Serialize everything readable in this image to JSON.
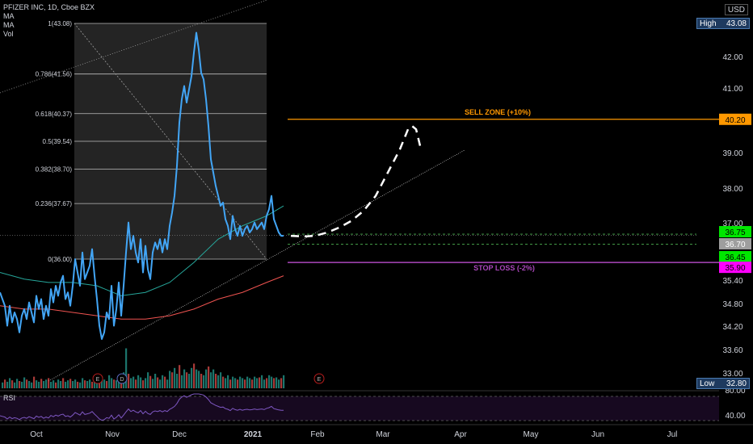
{
  "legend": {
    "title": "PFIZER INC, 1D, Cboe BZX",
    "ind1": "MA",
    "ind2": "MA",
    "ind3": "Vol"
  },
  "rsi_label": "RSI",
  "currency": "USD",
  "high_badge": {
    "label": "High",
    "value": "43.08"
  },
  "low_badge": {
    "label": "Low",
    "value": "32.80"
  },
  "colors": {
    "price": "#42a5f5",
    "ma_teal": "#26a69a",
    "ma_red": "#ef5350",
    "sell": "#ff9800",
    "stop": "#ab47bc",
    "green_badge": "#00e600",
    "magenta_badge": "#ff00ff",
    "rsi": "#7e57c2"
  },
  "chart_data": {
    "type": "line",
    "y_ticks": [
      "42.00",
      "41.00",
      "40.00",
      "39.00",
      "38.00",
      "37.00",
      "35.40",
      "34.80",
      "34.20",
      "33.60",
      "33.00"
    ],
    "y_range": [
      32.8,
      43.08
    ],
    "x_labels": [
      "Oct",
      "Nov",
      "Dec",
      "2021",
      "Feb",
      "Mar",
      "Apr",
      "May",
      "Jun",
      "Jul"
    ],
    "fib_levels": [
      {
        "label": "1(43.08)",
        "value": 43.08
      },
      {
        "label": "0.786(41.56)",
        "value": 41.56
      },
      {
        "label": "0.618(40.37)",
        "value": 40.37
      },
      {
        "label": "0.5(39.54)",
        "value": 39.54
      },
      {
        "label": "0.382(38.70)",
        "value": 38.7
      },
      {
        "label": "0.236(37.67)",
        "value": 37.67
      },
      {
        "label": "0(36.00)",
        "value": 36.0
      }
    ],
    "sell_zone": {
      "label": "SELL ZONE (+10%)",
      "value": 40.2,
      "badge": "40.20"
    },
    "stop_loss": {
      "label": "STOP LOSS (-2%)",
      "value": 35.9,
      "badge": "35.90"
    },
    "price_badges": [
      {
        "value": 36.75,
        "text": "36.75",
        "kind": "green"
      },
      {
        "value": 36.7,
        "text": "36.70",
        "kind": "gray"
      },
      {
        "value": 36.45,
        "text": "36.45",
        "kind": "green"
      }
    ],
    "rsi_ticks": [
      "80.00",
      "40.00"
    ],
    "events": [
      "E",
      "D",
      "E"
    ],
    "price_series": [
      [
        0,
        35.0
      ],
      [
        3,
        34.8
      ],
      [
        6,
        34.6
      ],
      [
        9,
        34.0
      ],
      [
        12,
        34.6
      ],
      [
        15,
        34.1
      ],
      [
        18,
        34.4
      ],
      [
        21,
        34.2
      ],
      [
        24,
        33.8
      ],
      [
        27,
        34.3
      ],
      [
        30,
        34.5
      ],
      [
        33,
        34.2
      ],
      [
        36,
        34.7
      ],
      [
        39,
        34.4
      ],
      [
        42,
        34.1
      ],
      [
        45,
        34.9
      ],
      [
        48,
        34.5
      ],
      [
        51,
        34.8
      ],
      [
        54,
        34.2
      ],
      [
        57,
        34.6
      ],
      [
        60,
        34.3
      ],
      [
        63,
        35.1
      ],
      [
        66,
        34.7
      ],
      [
        69,
        35.2
      ],
      [
        72,
        34.9
      ],
      [
        75,
        35.3
      ],
      [
        78,
        35.5
      ],
      [
        81,
        34.8
      ],
      [
        84,
        35.0
      ],
      [
        87,
        34.6
      ],
      [
        90,
        35.2
      ],
      [
        93,
        36.0
      ],
      [
        96,
        35.6
      ],
      [
        99,
        35.2
      ],
      [
        102,
        36.2
      ],
      [
        105,
        35.4
      ],
      [
        108,
        35.6
      ],
      [
        111,
        35.8
      ],
      [
        114,
        36.3
      ],
      [
        117,
        35.5
      ],
      [
        120,
        34.8
      ],
      [
        123,
        34.0
      ],
      [
        126,
        33.6
      ],
      [
        129,
        33.8
      ],
      [
        132,
        34.4
      ],
      [
        135,
        34.2
      ],
      [
        138,
        35.2
      ],
      [
        141,
        34.0
      ],
      [
        144,
        34.5
      ],
      [
        147,
        35.3
      ],
      [
        150,
        34.3
      ],
      [
        153,
        35.2
      ],
      [
        156,
        36.2
      ],
      [
        159,
        37.1
      ],
      [
        162,
        36.3
      ],
      [
        165,
        36.7
      ],
      [
        168,
        36.2
      ],
      [
        171,
        35.9
      ],
      [
        174,
        36.6
      ],
      [
        177,
        35.6
      ],
      [
        180,
        36.4
      ],
      [
        183,
        35.7
      ],
      [
        186,
        35.4
      ],
      [
        189,
        36.2
      ],
      [
        192,
        36.5
      ],
      [
        195,
        36.3
      ],
      [
        198,
        36.6
      ],
      [
        201,
        36.2
      ],
      [
        204,
        36.6
      ],
      [
        207,
        36.3
      ],
      [
        210,
        37.0
      ],
      [
        213,
        37.4
      ],
      [
        216,
        37.9
      ],
      [
        219,
        38.8
      ],
      [
        222,
        40.1
      ],
      [
        225,
        40.8
      ],
      [
        228,
        41.2
      ],
      [
        231,
        40.7
      ],
      [
        234,
        41.1
      ],
      [
        237,
        41.5
      ],
      [
        240,
        42.2
      ],
      [
        243,
        42.8
      ],
      [
        246,
        42.3
      ],
      [
        249,
        41.6
      ],
      [
        252,
        41.4
      ],
      [
        255,
        40.8
      ],
      [
        258,
        40.0
      ],
      [
        261,
        39.0
      ],
      [
        264,
        38.6
      ],
      [
        267,
        38.2
      ],
      [
        270,
        37.9
      ],
      [
        273,
        37.6
      ],
      [
        276,
        37.7
      ],
      [
        279,
        37.2
      ],
      [
        282,
        37.0
      ],
      [
        285,
        36.6
      ],
      [
        288,
        37.3
      ],
      [
        291,
        36.9
      ],
      [
        294,
        36.7
      ],
      [
        297,
        37.0
      ],
      [
        300,
        36.7
      ],
      [
        303,
        36.9
      ],
      [
        306,
        37.0
      ],
      [
        309,
        36.8
      ],
      [
        312,
        36.9
      ],
      [
        315,
        37.1
      ],
      [
        318,
        36.9
      ],
      [
        321,
        37.0
      ],
      [
        324,
        37.1
      ],
      [
        327,
        36.9
      ],
      [
        330,
        37.3
      ],
      [
        333,
        37.5
      ],
      [
        336,
        37.9
      ],
      [
        339,
        37.2
      ],
      [
        342,
        37.0
      ],
      [
        345,
        36.8
      ],
      [
        348,
        36.7
      ],
      [
        351,
        36.7
      ]
    ],
    "ma_fast": [
      [
        0,
        35.6
      ],
      [
        30,
        35.4
      ],
      [
        60,
        35.3
      ],
      [
        90,
        35.3
      ],
      [
        120,
        35.2
      ],
      [
        150,
        34.9
      ],
      [
        180,
        35.0
      ],
      [
        210,
        35.3
      ],
      [
        240,
        35.9
      ],
      [
        270,
        36.6
      ],
      [
        300,
        37.0
      ],
      [
        330,
        37.3
      ],
      [
        351,
        37.6
      ]
    ],
    "ma_slow": [
      [
        0,
        34.6
      ],
      [
        30,
        34.5
      ],
      [
        60,
        34.5
      ],
      [
        90,
        34.4
      ],
      [
        120,
        34.3
      ],
      [
        150,
        34.2
      ],
      [
        180,
        34.2
      ],
      [
        210,
        34.3
      ],
      [
        240,
        34.5
      ],
      [
        270,
        34.8
      ],
      [
        300,
        35.0
      ],
      [
        330,
        35.3
      ],
      [
        351,
        35.5
      ]
    ],
    "projection": [
      [
        360,
        36.7
      ],
      [
        375,
        36.68
      ],
      [
        390,
        36.7
      ],
      [
        405,
        36.8
      ],
      [
        420,
        36.95
      ],
      [
        435,
        37.15
      ],
      [
        450,
        37.45
      ],
      [
        465,
        37.9
      ],
      [
        480,
        38.6
      ],
      [
        495,
        39.3
      ],
      [
        505,
        39.9
      ],
      [
        510,
        40.0
      ],
      [
        515,
        39.9
      ],
      [
        520,
        39.4
      ]
    ],
    "volume": [
      [
        3,
        8
      ],
      [
        6,
        12
      ],
      [
        9,
        9
      ],
      [
        12,
        14
      ],
      [
        15,
        11
      ],
      [
        18,
        8
      ],
      [
        21,
        13
      ],
      [
        24,
        10
      ],
      [
        27,
        9
      ],
      [
        30,
        15
      ],
      [
        33,
        12
      ],
      [
        36,
        10
      ],
      [
        39,
        8
      ],
      [
        42,
        16
      ],
      [
        45,
        11
      ],
      [
        48,
        9
      ],
      [
        51,
        13
      ],
      [
        54,
        10
      ],
      [
        57,
        12
      ],
      [
        60,
        14
      ],
      [
        63,
        9
      ],
      [
        66,
        11
      ],
      [
        69,
        8
      ],
      [
        72,
        12
      ],
      [
        75,
        10
      ],
      [
        78,
        14
      ],
      [
        81,
        9
      ],
      [
        84,
        11
      ],
      [
        87,
        13
      ],
      [
        90,
        10
      ],
      [
        93,
        12
      ],
      [
        96,
        9
      ],
      [
        99,
        8
      ],
      [
        102,
        14
      ],
      [
        105,
        11
      ],
      [
        108,
        10
      ],
      [
        111,
        12
      ],
      [
        114,
        9
      ],
      [
        117,
        13
      ],
      [
        120,
        15
      ],
      [
        123,
        11
      ],
      [
        126,
        16
      ],
      [
        129,
        12
      ],
      [
        132,
        10
      ],
      [
        135,
        18
      ],
      [
        138,
        14
      ],
      [
        141,
        12
      ],
      [
        144,
        11
      ],
      [
        147,
        9
      ],
      [
        150,
        14
      ],
      [
        153,
        22
      ],
      [
        156,
        55
      ],
      [
        159,
        20
      ],
      [
        162,
        14
      ],
      [
        165,
        16
      ],
      [
        168,
        12
      ],
      [
        171,
        18
      ],
      [
        174,
        15
      ],
      [
        177,
        11
      ],
      [
        180,
        14
      ],
      [
        183,
        22
      ],
      [
        186,
        17
      ],
      [
        189,
        13
      ],
      [
        192,
        20
      ],
      [
        195,
        15
      ],
      [
        198,
        12
      ],
      [
        201,
        18
      ],
      [
        204,
        16
      ],
      [
        207,
        12
      ],
      [
        210,
        24
      ],
      [
        213,
        22
      ],
      [
        216,
        28
      ],
      [
        219,
        20
      ],
      [
        222,
        32
      ],
      [
        225,
        18
      ],
      [
        228,
        26
      ],
      [
        231,
        22
      ],
      [
        234,
        20
      ],
      [
        237,
        28
      ],
      [
        240,
        34
      ],
      [
        243,
        26
      ],
      [
        246,
        24
      ],
      [
        249,
        20
      ],
      [
        252,
        18
      ],
      [
        255,
        26
      ],
      [
        258,
        30
      ],
      [
        261,
        22
      ],
      [
        264,
        26
      ],
      [
        267,
        20
      ],
      [
        270,
        18
      ],
      [
        273,
        22
      ],
      [
        276,
        16
      ],
      [
        279,
        14
      ],
      [
        282,
        18
      ],
      [
        285,
        12
      ],
      [
        288,
        16
      ],
      [
        291,
        14
      ],
      [
        294,
        12
      ],
      [
        297,
        16
      ],
      [
        300,
        14
      ],
      [
        303,
        12
      ],
      [
        306,
        16
      ],
      [
        309,
        14
      ],
      [
        312,
        12
      ],
      [
        315,
        16
      ],
      [
        318,
        14
      ],
      [
        321,
        15
      ],
      [
        324,
        18
      ],
      [
        327,
        12
      ],
      [
        330,
        14
      ],
      [
        333,
        18
      ],
      [
        336,
        16
      ],
      [
        339,
        14
      ],
      [
        342,
        15
      ],
      [
        345,
        12
      ],
      [
        348,
        14
      ],
      [
        351,
        18
      ]
    ]
  }
}
